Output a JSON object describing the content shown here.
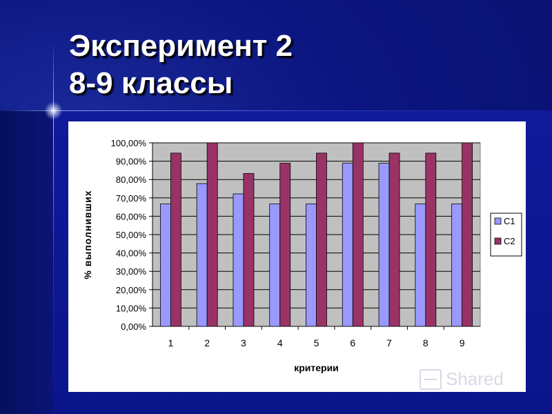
{
  "slide": {
    "title_line1": "Эксперимент 2",
    "title_line2": "8-9 классы",
    "watermark": "Shared"
  },
  "colors": {
    "background": "#0a1070",
    "c1": "#9999ff",
    "c2": "#993366",
    "plot_area": "#c0c0c0"
  },
  "chart_data": {
    "type": "bar",
    "categories": [
      "1",
      "2",
      "3",
      "4",
      "5",
      "6",
      "7",
      "8",
      "9"
    ],
    "series": [
      {
        "name": "С1",
        "values": [
          66.7,
          77.8,
          72.2,
          66.7,
          66.7,
          88.9,
          88.9,
          66.7,
          66.7
        ]
      },
      {
        "name": "С2",
        "values": [
          94.4,
          100,
          83.3,
          88.9,
          94.4,
          100,
          94.4,
          94.4,
          100
        ]
      }
    ],
    "yticks": [
      "0,00%",
      "10,00%",
      "20,00%",
      "30,00%",
      "40,00%",
      "50,00%",
      "60,00%",
      "70,00%",
      "80,00%",
      "90,00%",
      "100,00%"
    ],
    "xlabel": "критерии",
    "ylabel": "% выполнивших",
    "ylim": [
      0,
      100
    ],
    "grid": true,
    "legend_position": "right"
  }
}
